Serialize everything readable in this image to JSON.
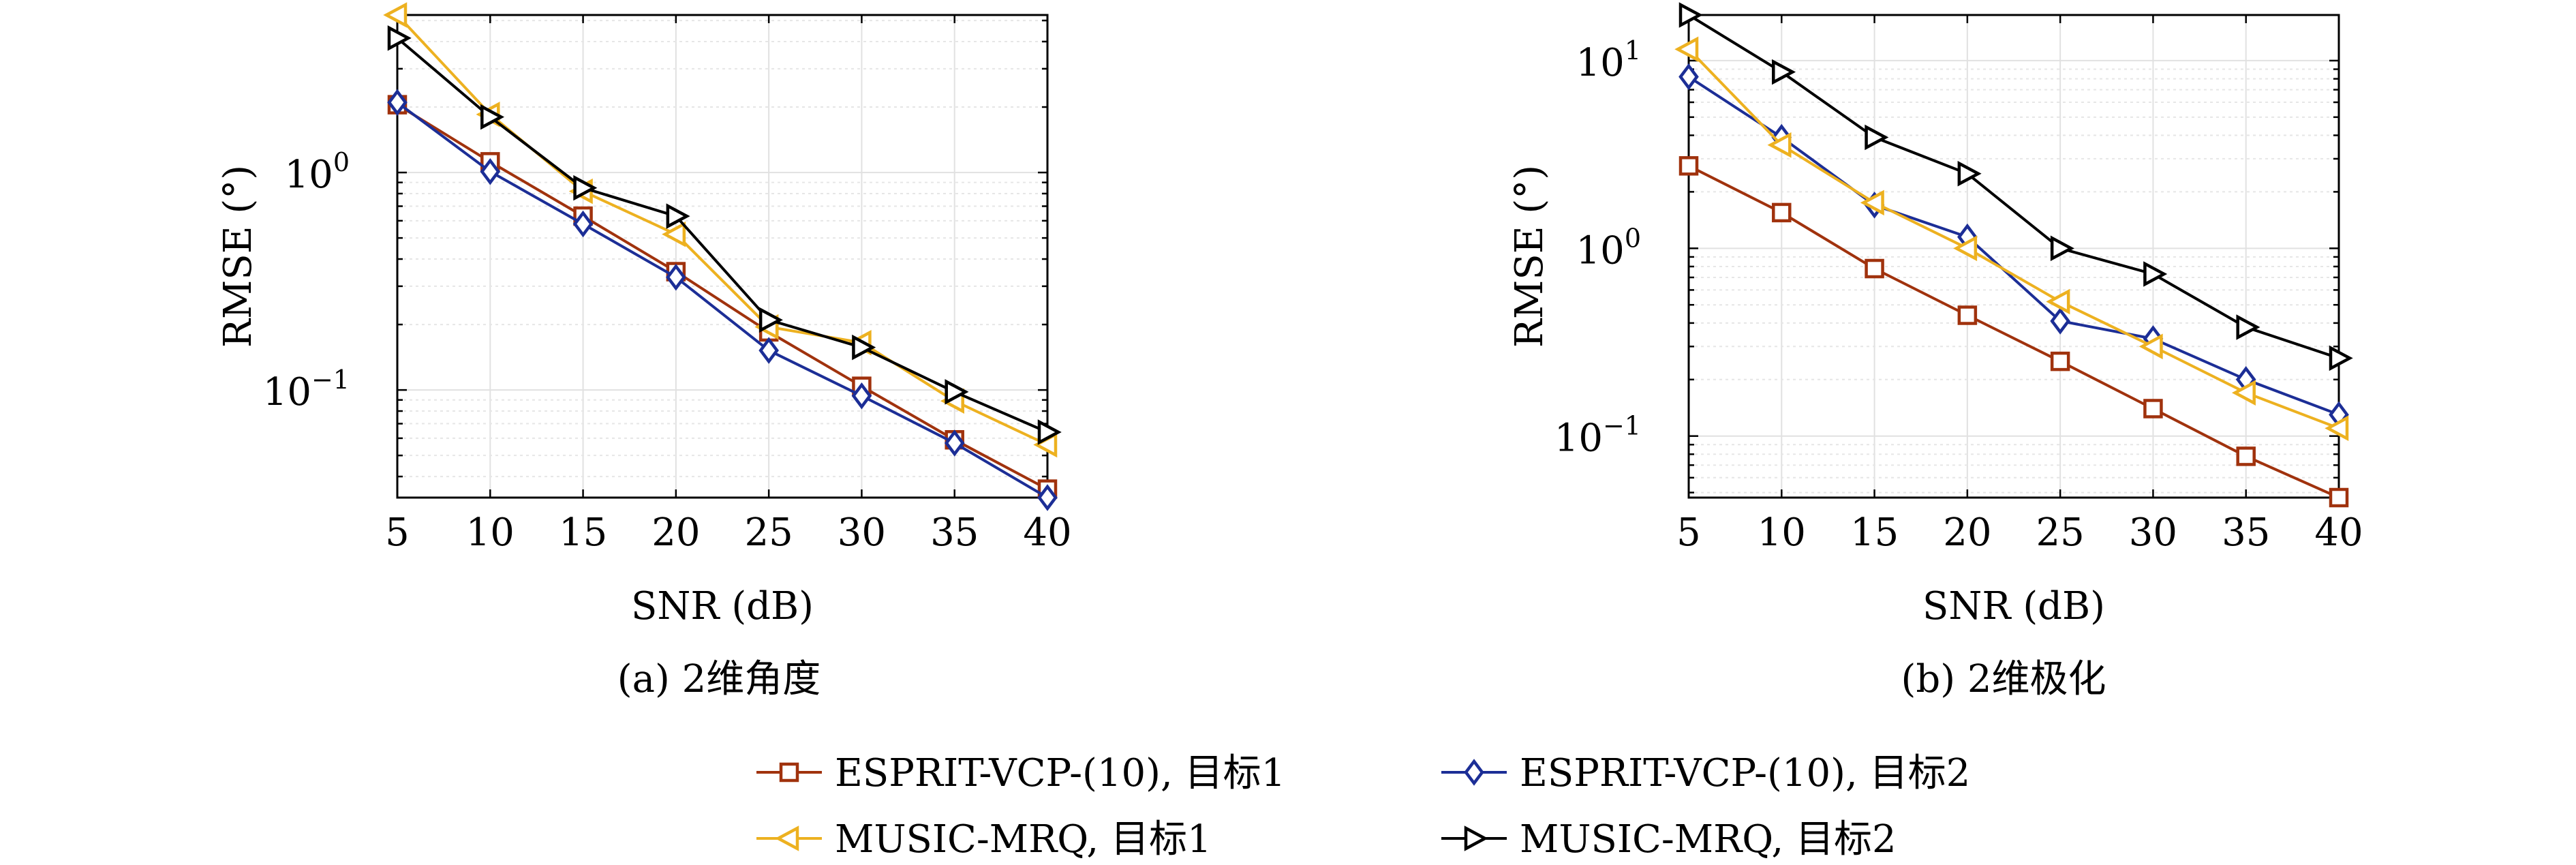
{
  "chart_data": [
    {
      "type": "line",
      "caption": "(a) 2维角度",
      "xlabel": "SNR (dB)",
      "ylabel": "RMSE (°)",
      "yscale": "log",
      "xlim": [
        5,
        40
      ],
      "ylim": [
        0.032,
        5.3
      ],
      "grid": true,
      "x": [
        5,
        10,
        15,
        20,
        25,
        30,
        35,
        40
      ],
      "x_ticks": [
        "5",
        "10",
        "15",
        "20",
        "25",
        "30",
        "35",
        "40"
      ],
      "y_ticks": [
        {
          "base": "10",
          "exp": "0",
          "value": 1
        },
        {
          "base": "10",
          "exp": "−1",
          "value": 0.1
        }
      ],
      "series": [
        {
          "name": "ESPRIT-VCP-(10), 目标1",
          "values": [
            2.05,
            1.12,
            0.63,
            0.35,
            0.185,
            0.104,
            0.059,
            0.035
          ]
        },
        {
          "name": "ESPRIT-VCP-(10), 目标2",
          "values": [
            2.1,
            1.01,
            0.58,
            0.33,
            0.152,
            0.094,
            0.057,
            0.032
          ]
        },
        {
          "name": "MUSIC-MRQ, 目标1",
          "values": [
            5.3,
            1.85,
            0.82,
            0.52,
            0.195,
            0.165,
            0.089,
            0.056
          ]
        },
        {
          "name": "MUSIC-MRQ, 目标2",
          "values": [
            4.15,
            1.8,
            0.85,
            0.63,
            0.21,
            0.157,
            0.098,
            0.064
          ]
        }
      ]
    },
    {
      "type": "line",
      "caption": "(b) 2维极化",
      "xlabel": "SNR (dB)",
      "ylabel": "RMSE (°)",
      "yscale": "log",
      "xlim": [
        5,
        40
      ],
      "ylim": [
        0.047,
        17.5
      ],
      "grid": true,
      "x": [
        5,
        10,
        15,
        20,
        25,
        30,
        35,
        40
      ],
      "x_ticks": [
        "5",
        "10",
        "15",
        "20",
        "25",
        "30",
        "35",
        "40"
      ],
      "y_ticks": [
        {
          "base": "10",
          "exp": "1",
          "value": 10
        },
        {
          "base": "10",
          "exp": "0",
          "value": 1
        },
        {
          "base": "10",
          "exp": "−1",
          "value": 0.1
        }
      ],
      "series": [
        {
          "name": "ESPRIT-VCP-(10), 目标1",
          "values": [
            2.75,
            1.55,
            0.78,
            0.44,
            0.25,
            0.14,
            0.078,
            0.047
          ]
        },
        {
          "name": "ESPRIT-VCP-(10), 目标2",
          "values": [
            8.2,
            3.9,
            1.7,
            1.15,
            0.41,
            0.33,
            0.2,
            0.13
          ]
        },
        {
          "name": "MUSIC-MRQ, 目标1",
          "values": [
            11.5,
            3.55,
            1.75,
            1.0,
            0.52,
            0.3,
            0.17,
            0.11
          ]
        },
        {
          "name": "MUSIC-MRQ, 目标2",
          "values": [
            17.5,
            8.7,
            3.9,
            2.5,
            1.0,
            0.73,
            0.38,
            0.26
          ]
        }
      ]
    }
  ],
  "legend": {
    "placement": "bottom-center",
    "entries": [
      {
        "label": "ESPRIT-VCP-(10), 目标1",
        "color": "#A0320D",
        "marker": "square"
      },
      {
        "label": "ESPRIT-VCP-(10), 目标2",
        "color": "#1C2E96",
        "marker": "diamond"
      },
      {
        "label": "MUSIC-MRQ, 目标1",
        "color": "#EDB120",
        "marker": "triangle-left"
      },
      {
        "label": "MUSIC-MRQ, 目标2",
        "color": "#000000",
        "marker": "triangle-right"
      }
    ]
  },
  "series_colors": [
    "#A0320D",
    "#1C2E96",
    "#EDB120",
    "#000000"
  ],
  "series_markers": [
    "square",
    "diamond",
    "triangle-left",
    "triangle-right"
  ]
}
